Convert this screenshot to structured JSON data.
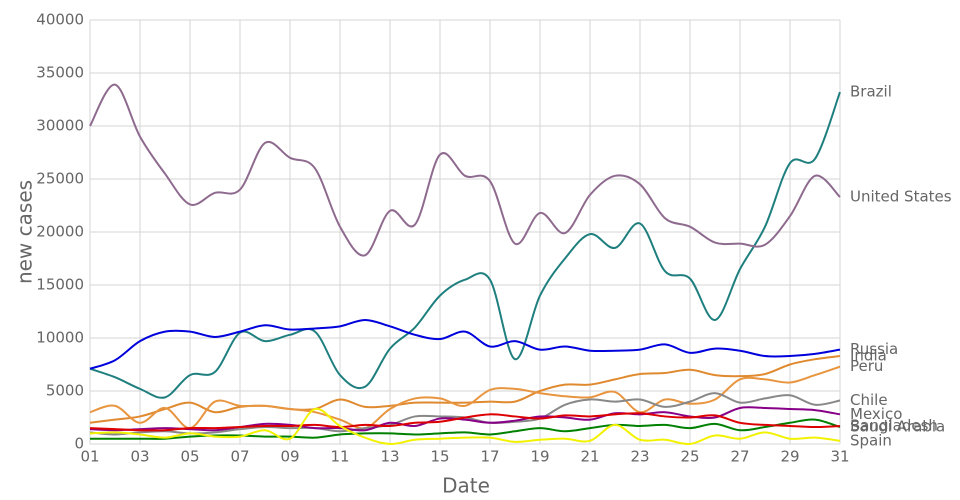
{
  "chart_data": {
    "type": "line",
    "xlabel": "Date",
    "ylabel": "new cases",
    "categories": [
      "01",
      null,
      "03",
      null,
      "05",
      null,
      "07",
      null,
      "09",
      null,
      "11",
      null,
      "13",
      null,
      "15",
      null,
      "17",
      null,
      "19",
      null,
      "21",
      null,
      "23",
      null,
      "25",
      null,
      "27",
      null,
      "29",
      null,
      "31"
    ],
    "ylim": [
      0,
      40000
    ],
    "yticks": [
      0,
      5000,
      10000,
      15000,
      20000,
      25000,
      30000,
      35000,
      40000
    ],
    "grid": true,
    "smooth": true,
    "series": [
      {
        "name": "Brazil",
        "color": "#1f7f7f",
        "values": [
          7100,
          6300,
          5200,
          4400,
          6500,
          6800,
          10500,
          9700,
          10300,
          10600,
          6500,
          5400,
          9000,
          11000,
          14000,
          15500,
          15500,
          8000,
          14000,
          17500,
          19800,
          18500,
          20800,
          16300,
          15600,
          11700,
          16500,
          20500,
          26500,
          26900,
          33200
        ]
      },
      {
        "name": "United States",
        "color": "#8e6a8e",
        "values": [
          30000,
          33900,
          29000,
          25500,
          22600,
          23700,
          24000,
          28400,
          27000,
          26000,
          20500,
          17800,
          22000,
          20700,
          27300,
          25300,
          24800,
          18900,
          21800,
          19900,
          23500,
          25300,
          24500,
          21300,
          20500,
          19000,
          18900,
          18800,
          21500,
          25300,
          23300
        ]
      },
      {
        "name": "Russia",
        "color": "#0000dd",
        "values": [
          7100,
          7900,
          9700,
          10600,
          10600,
          10100,
          10600,
          11200,
          10800,
          10900,
          11100,
          11700,
          11100,
          10300,
          9900,
          10600,
          9200,
          9700,
          8900,
          9200,
          8800,
          8800,
          8900,
          9400,
          8600,
          9000,
          8800,
          8300,
          8300,
          8500,
          8900
        ]
      },
      {
        "name": "India",
        "color": "#e08a30",
        "values": [
          2000,
          2300,
          2600,
          3300,
          3900,
          3000,
          3500,
          3600,
          3300,
          3300,
          4200,
          3500,
          3600,
          3900,
          3900,
          3900,
          4000,
          4000,
          5000,
          5600,
          5600,
          6100,
          6600,
          6700,
          7000,
          6500,
          6400,
          6600,
          7500,
          8000,
          8300
        ]
      },
      {
        "name": "Peru",
        "color": "#e89540",
        "values": [
          3000,
          3600,
          2000,
          3400,
          1500,
          4000,
          3600,
          3600,
          3300,
          3000,
          2300,
          1500,
          3300,
          4300,
          4300,
          3600,
          5100,
          5200,
          4800,
          4500,
          4400,
          4900,
          3000,
          4200,
          3800,
          4200,
          6100,
          6100,
          5800,
          6500,
          7300
        ]
      },
      {
        "name": "Chile",
        "color": "#888888",
        "values": [
          1100,
          900,
          1100,
          1200,
          1000,
          1100,
          1400,
          1600,
          1500,
          1500,
          1200,
          1500,
          1800,
          2600,
          2600,
          2500,
          2000,
          2100,
          2400,
          3700,
          4200,
          4000,
          4200,
          3500,
          4000,
          4800,
          3900,
          4300,
          4600,
          3700,
          4100
        ]
      },
      {
        "name": "Mexico",
        "color": "#880088",
        "values": [
          1400,
          1300,
          1400,
          1500,
          1400,
          1300,
          1600,
          1900,
          1800,
          1500,
          1500,
          1300,
          2000,
          1700,
          2400,
          2300,
          2000,
          2200,
          2600,
          2500,
          2300,
          2900,
          2800,
          3000,
          2600,
          2500,
          3400,
          3400,
          3300,
          3200,
          2800
        ]
      },
      {
        "name": "Saudi Arabia",
        "color": "#008000",
        "values": [
          500,
          500,
          500,
          500,
          700,
          800,
          800,
          700,
          700,
          600,
          900,
          1000,
          1000,
          900,
          1000,
          1100,
          900,
          1200,
          1500,
          1200,
          1500,
          1800,
          1700,
          1800,
          1500,
          1900,
          1300,
          1600,
          2000,
          2300,
          1600
        ]
      },
      {
        "name": "Bangladesh",
        "color": "#dd0000",
        "values": [
          1500,
          1400,
          1300,
          1300,
          1500,
          1500,
          1600,
          1700,
          1700,
          1800,
          1600,
          1800,
          1700,
          2000,
          2100,
          2500,
          2800,
          2600,
          2400,
          2700,
          2600,
          2800,
          2900,
          2600,
          2500,
          2700,
          2000,
          1800,
          1700,
          1600,
          1700
        ]
      },
      {
        "name": "Spain",
        "color": "#f2f200",
        "values": [
          1000,
          1100,
          900,
          600,
          1000,
          700,
          700,
          1300,
          500,
          3300,
          1700,
          600,
          0,
          400,
          500,
          600,
          600,
          200,
          400,
          500,
          300,
          1800,
          400,
          400,
          0,
          800,
          500,
          1100,
          500,
          600,
          300
        ]
      }
    ]
  }
}
